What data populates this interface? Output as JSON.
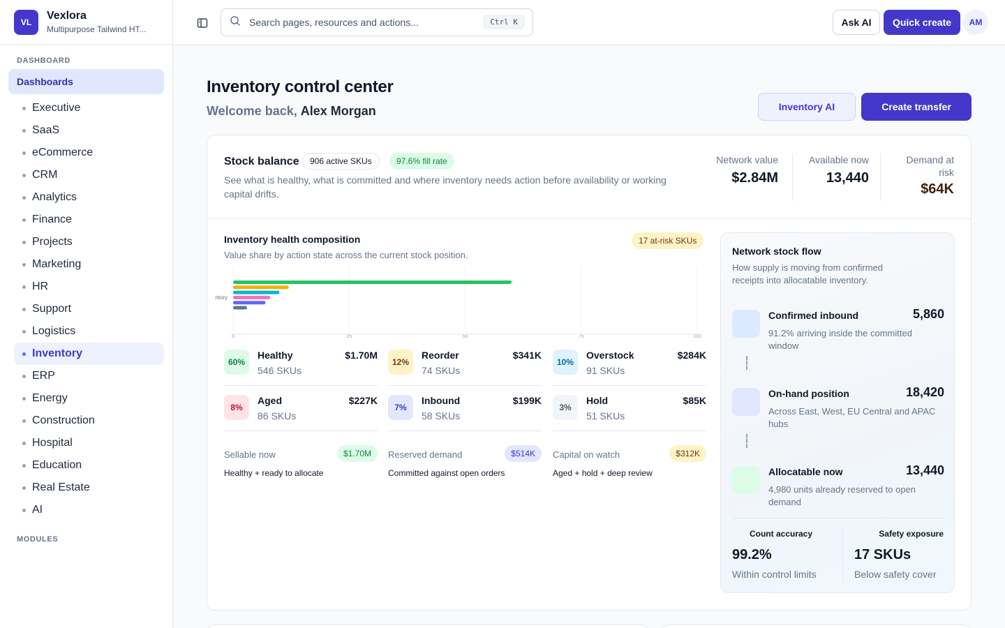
{
  "brand": {
    "initials": "VL",
    "name": "Vexlora",
    "subtitle": "Multipurpose Tailwind HT..."
  },
  "sidebar": {
    "section_dashboard": "DASHBOARD",
    "group_label": "Dashboards",
    "items": [
      "Executive",
      "SaaS",
      "eCommerce",
      "CRM",
      "Analytics",
      "Finance",
      "Projects",
      "Marketing",
      "HR",
      "Support",
      "Logistics",
      "Inventory",
      "ERP",
      "Energy",
      "Construction",
      "Hospital",
      "Education",
      "Real Estate",
      "AI"
    ],
    "active_item": "Inventory",
    "section_modules": "MODULES"
  },
  "topbar": {
    "search_placeholder": "Search pages, resources and actions...",
    "shortcut": "Ctrl K",
    "ask_ai": "Ask AI",
    "quick_create": "Quick create",
    "avatar": "AM"
  },
  "page": {
    "title": "Inventory control center",
    "welcome_prefix": "Welcome back,",
    "user_name": "Alex Morgan",
    "inventory_ai_button": "Inventory AI",
    "create_transfer_button": "Create transfer"
  },
  "stock": {
    "title": "Stock balance",
    "active_skus": "906 active SKUs",
    "fill_rate": "97.6% fill rate",
    "description": "See what is healthy, what is committed and where inventory needs action before availability or working capital drifts.",
    "kpis": [
      {
        "label": "Network value",
        "value": "$2.84M"
      },
      {
        "label": "Available now",
        "value": "13,440"
      },
      {
        "label": "Demand at risk",
        "value": "$64K"
      }
    ]
  },
  "health": {
    "title": "Inventory health composition",
    "description": "Value share by action state across the current stock position.",
    "at_risk": "17 at-risk SKUs"
  },
  "chart_data": {
    "type": "bar",
    "orientation": "horizontal",
    "categories": [
      "Inventory"
    ],
    "category_label_visible": "ntory",
    "series": [
      {
        "name": "Healthy",
        "values": [
          60
        ],
        "color": "#22c55e"
      },
      {
        "name": "Reorder",
        "values": [
          12
        ],
        "color": "#eab308"
      },
      {
        "name": "Overstock",
        "values": [
          10
        ],
        "color": "#06b6d4"
      },
      {
        "name": "Aged",
        "values": [
          8
        ],
        "color": "#f472b6"
      },
      {
        "name": "Inbound",
        "values": [
          7
        ],
        "color": "#6366f1"
      },
      {
        "name": "Hold",
        "values": [
          3
        ],
        "color": "#64748b"
      }
    ],
    "xlim": [
      0,
      100
    ],
    "ticks": [
      "0",
      "25",
      "50",
      "75",
      "100"
    ],
    "grid": true
  },
  "tiles": [
    {
      "pct": "60%",
      "name": "Healthy",
      "skus": "546 SKUs",
      "amount": "$1.70M",
      "bg": "#dcfce7",
      "fg": "#15803d"
    },
    {
      "pct": "12%",
      "name": "Reorder",
      "skus": "74 SKUs",
      "amount": "$341K",
      "bg": "#fef3c7",
      "fg": "#78350f"
    },
    {
      "pct": "10%",
      "name": "Overstock",
      "skus": "91 SKUs",
      "amount": "$284K",
      "bg": "#e0f2fe",
      "fg": "#0369a1"
    },
    {
      "pct": "8%",
      "name": "Aged",
      "skus": "86 SKUs",
      "amount": "$227K",
      "bg": "#ffe4e6",
      "fg": "#be123c"
    },
    {
      "pct": "7%",
      "name": "Inbound",
      "skus": "58 SKUs",
      "amount": "$199K",
      "bg": "#e0e7ff",
      "fg": "#4338ca"
    },
    {
      "pct": "3%",
      "name": "Hold",
      "skus": "51 SKUs",
      "amount": "$85K",
      "bg": "#f1f5f9",
      "fg": "#475569"
    }
  ],
  "summaries": [
    {
      "label": "Sellable now",
      "chip": "$1.70M",
      "desc": "Healthy + ready to allocate",
      "bg": "#dcfce7",
      "fg": "#15803d"
    },
    {
      "label": "Reserved demand",
      "chip": "$514K",
      "desc": "Committed against open orders",
      "bg": "#e0e7ff",
      "fg": "#4338ca"
    },
    {
      "label": "Capital on watch",
      "chip": "$312K",
      "desc": "Aged + hold + deep review",
      "bg": "#fef3c7",
      "fg": "#78350f"
    }
  ],
  "flow": {
    "title": "Network stock flow",
    "description": "How supply is moving from confirmed receipts into allocatable inventory.",
    "items": [
      {
        "name": "Confirmed inbound",
        "value": "5,860",
        "desc": "91.2% arriving inside the committed window",
        "color": "#dbeafe"
      },
      {
        "name": "On-hand position",
        "value": "18,420",
        "desc": "Across East, West, EU Central and APAC hubs",
        "color": "#e0e7ff"
      },
      {
        "name": "Allocatable now",
        "value": "13,440",
        "desc": "4,980 units already reserved to open demand",
        "color": "#dcfce7"
      }
    ],
    "stats": [
      {
        "title": "Count accuracy",
        "value": "99.2%",
        "sub": "Within control limits"
      },
      {
        "title": "Safety exposure",
        "value": "17 SKUs",
        "sub": "Below safety cover"
      }
    ]
  }
}
